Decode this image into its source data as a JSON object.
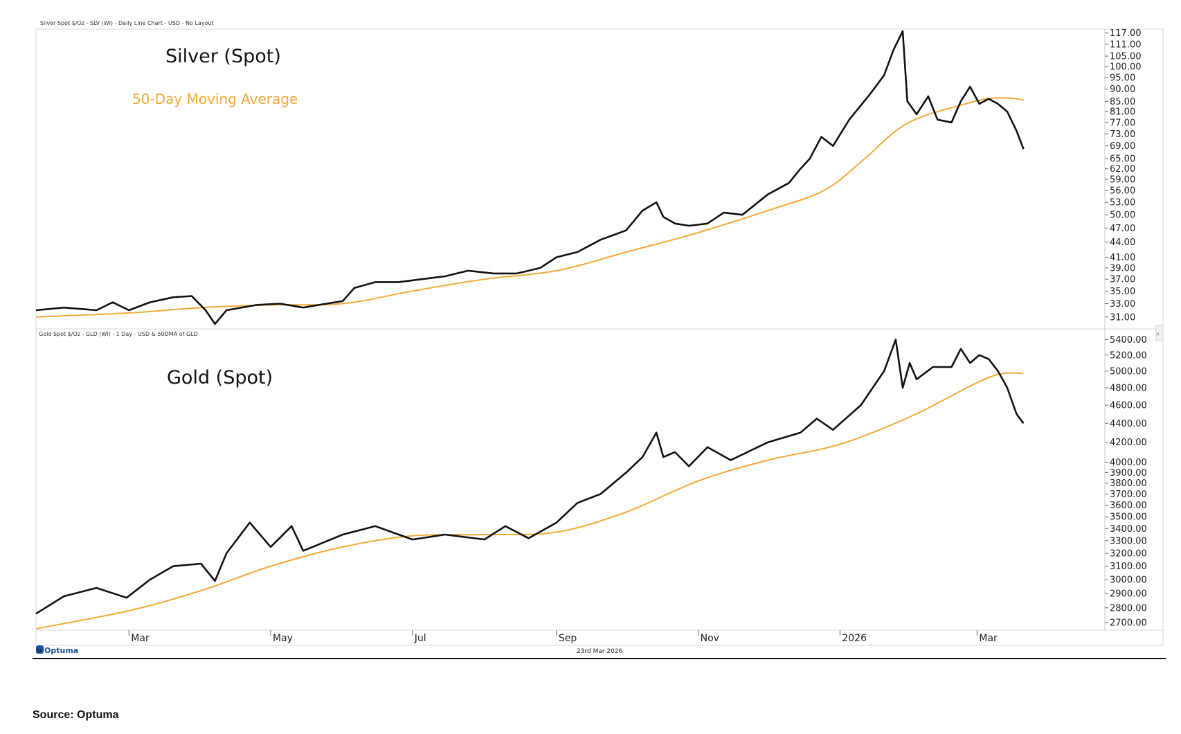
{
  "colors": {
    "price": "#111111",
    "ma": "#f3a935",
    "frame": "#d9d9d9",
    "axis": "#888888"
  },
  "footer": {
    "logo": "Optuma",
    "date": "23rd Mar 2026",
    "source": "Source: Optuma"
  },
  "chart_data": [
    {
      "type": "line",
      "header": "Silver Spot $/Oz - SLV (Wl) - Daily Line Chart - USD - No Layout",
      "title": "Silver (Spot)",
      "annotation": "50-Day Moving Average",
      "y_scale": "log",
      "ylim": [
        29.8,
        118
      ],
      "yticks": [
        "31.00",
        "33.00",
        "35.00",
        "37.00",
        "39.00",
        "41.00",
        "44.00",
        "47.00",
        "50.00",
        "53.00",
        "56.00",
        "59.00",
        "62.00",
        "65.00",
        "69.00",
        "73.00",
        "77.00",
        "81.00",
        "85.00",
        "90.00",
        "95.00",
        "100.00",
        "105.00",
        "111.00",
        "117.00"
      ],
      "x_start": "2025-01-20",
      "x_end": "2026-04-25",
      "series": [
        {
          "role": "price",
          "x": [
            "2025-01-20",
            "2025-02-01",
            "2025-02-15",
            "2025-02-22",
            "2025-03-01",
            "2025-03-10",
            "2025-03-20",
            "2025-03-28",
            "2025-04-03",
            "2025-04-07",
            "2025-04-12",
            "2025-04-25",
            "2025-05-05",
            "2025-05-15",
            "2025-05-25",
            "2025-06-01",
            "2025-06-06",
            "2025-06-15",
            "2025-06-25",
            "2025-07-05",
            "2025-07-15",
            "2025-07-25",
            "2025-08-05",
            "2025-08-15",
            "2025-08-25",
            "2025-09-01",
            "2025-09-10",
            "2025-09-20",
            "2025-10-01",
            "2025-10-08",
            "2025-10-14",
            "2025-10-17",
            "2025-10-22",
            "2025-10-28",
            "2025-11-05",
            "2025-11-12",
            "2025-11-20",
            "2025-12-01",
            "2025-12-10",
            "2025-12-15",
            "2025-12-19",
            "2025-12-24",
            "2025-12-29",
            "2026-01-05",
            "2026-01-14",
            "2026-01-20",
            "2026-01-24",
            "2026-01-28",
            "2026-01-30",
            "2026-02-03",
            "2026-02-08",
            "2026-02-12",
            "2026-02-18",
            "2026-02-22",
            "2026-02-26",
            "2026-03-02",
            "2026-03-06",
            "2026-03-10",
            "2026-03-14",
            "2026-03-18",
            "2026-03-21"
          ],
          "y": [
            32.0,
            32.4,
            32.0,
            33.2,
            32.0,
            33.2,
            34.0,
            34.2,
            32.0,
            30.0,
            32.0,
            32.8,
            33.0,
            32.4,
            33.0,
            33.4,
            35.5,
            36.5,
            36.5,
            37.0,
            37.5,
            38.5,
            38.0,
            38.0,
            39.0,
            41.0,
            42.0,
            44.5,
            46.5,
            51.0,
            53.0,
            49.5,
            48.0,
            47.5,
            48.0,
            50.5,
            50.0,
            55.0,
            58.0,
            62.0,
            65.0,
            72.0,
            69.0,
            78.0,
            88.0,
            96.0,
            108.0,
            118.0,
            85.0,
            80.0,
            87.0,
            78.0,
            77.0,
            85.0,
            91.0,
            84.0,
            86.0,
            84.0,
            81.0,
            74.0,
            68.0
          ]
        },
        {
          "role": "ma",
          "x": [
            "2025-01-20",
            "2025-03-01",
            "2025-04-01",
            "2025-05-01",
            "2025-06-01",
            "2025-07-01",
            "2025-08-01",
            "2025-09-01",
            "2025-10-01",
            "2025-11-01",
            "2025-12-01",
            "2025-12-25",
            "2026-01-10",
            "2026-01-25",
            "2026-02-05",
            "2026-02-20",
            "2026-03-05",
            "2026-03-15",
            "2026-03-21"
          ],
          "y": [
            31.0,
            31.6,
            32.4,
            32.8,
            33.0,
            35.0,
            37.0,
            38.5,
            42.0,
            46.0,
            51.0,
            56.0,
            64.0,
            74.0,
            79.0,
            83.0,
            86.0,
            86.3,
            85.5
          ]
        }
      ]
    },
    {
      "type": "line",
      "header": "Gold Spot $/Oz - GLD (Wl) - 1 Day - USD & 50DMA of GLD",
      "title": "Gold (Spot)",
      "y_scale": "log",
      "ylim": [
        2660,
        5460
      ],
      "yticks": [
        "2700.00",
        "2800.00",
        "2900.00",
        "3000.00",
        "3100.00",
        "3200.00",
        "3300.00",
        "3400.00",
        "3500.00",
        "3600.00",
        "3700.00",
        "3800.00",
        "3900.00",
        "4000.00",
        "4200.00",
        "4400.00",
        "4600.00",
        "4800.00",
        "5000.00",
        "5200.00",
        "5400.00"
      ],
      "x_start": "2025-01-20",
      "x_end": "2026-04-25",
      "x_ticks": [
        "Mar",
        "May",
        "Jul",
        "Sep",
        "Nov",
        "2026",
        "Mar"
      ],
      "series": [
        {
          "role": "price",
          "x": [
            "2025-01-20",
            "2025-02-01",
            "2025-02-15",
            "2025-02-28",
            "2025-03-10",
            "2025-03-20",
            "2025-04-01",
            "2025-04-07",
            "2025-04-12",
            "2025-04-22",
            "2025-05-01",
            "2025-05-10",
            "2025-05-15",
            "2025-06-01",
            "2025-06-15",
            "2025-07-01",
            "2025-07-15",
            "2025-08-01",
            "2025-08-10",
            "2025-08-20",
            "2025-09-01",
            "2025-09-10",
            "2025-09-20",
            "2025-10-01",
            "2025-10-08",
            "2025-10-14",
            "2025-10-17",
            "2025-10-22",
            "2025-10-28",
            "2025-11-05",
            "2025-11-15",
            "2025-12-01",
            "2025-12-15",
            "2025-12-22",
            "2025-12-29",
            "2026-01-10",
            "2026-01-20",
            "2026-01-25",
            "2026-01-28",
            "2026-01-31",
            "2026-02-03",
            "2026-02-10",
            "2026-02-18",
            "2026-02-22",
            "2026-02-26",
            "2026-03-02",
            "2026-03-06",
            "2026-03-10",
            "2026-03-14",
            "2026-03-18",
            "2026-03-21"
          ],
          "y": [
            2760,
            2880,
            2940,
            2870,
            3000,
            3100,
            3120,
            2990,
            3200,
            3450,
            3250,
            3420,
            3220,
            3350,
            3420,
            3310,
            3350,
            3310,
            3420,
            3320,
            3450,
            3620,
            3700,
            3900,
            4050,
            4300,
            4050,
            4100,
            3960,
            4150,
            4020,
            4200,
            4300,
            4450,
            4330,
            4600,
            5000,
            5400,
            4800,
            5100,
            4900,
            5050,
            5050,
            5280,
            5100,
            5200,
            5150,
            5000,
            4800,
            4500,
            4400
          ]
        },
        {
          "role": "ma",
          "x": [
            "2025-01-20",
            "2025-03-01",
            "2025-04-01",
            "2025-05-01",
            "2025-06-01",
            "2025-07-01",
            "2025-08-01",
            "2025-09-01",
            "2025-10-01",
            "2025-11-01",
            "2025-12-01",
            "2026-01-01",
            "2026-02-01",
            "2026-03-01",
            "2026-03-12",
            "2026-03-21"
          ],
          "y": [
            2660,
            2780,
            2920,
            3100,
            3250,
            3340,
            3350,
            3370,
            3540,
            3820,
            4020,
            4180,
            4480,
            4860,
            4970,
            4970
          ]
        }
      ]
    }
  ]
}
